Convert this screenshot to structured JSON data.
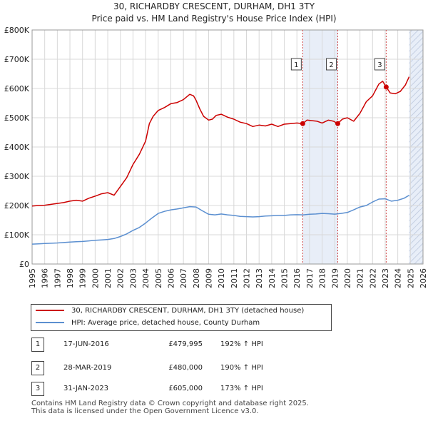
{
  "header": {
    "title": "30, RICHARDBY CRESCENT, DURHAM, DH1 3TY",
    "subtitle": "Price paid vs. HM Land Registry's House Price Index (HPI)"
  },
  "colors": {
    "property": "#cc0000",
    "hpi": "#5b8fd0",
    "marker_line": "#d04a4a",
    "span_fill": "#e8eef8",
    "grid": "#d8d8d8"
  },
  "chart_data": {
    "type": "line",
    "title": "30, RICHARDBY CRESCENT, DURHAM, DH1 3TY",
    "subtitle": "Price paid vs. HM Land Registry's House Price Index (HPI)",
    "xlabel": "",
    "ylabel": "",
    "xlim": [
      1995,
      2026
    ],
    "ylim": [
      0,
      800000
    ],
    "grid": true,
    "yticks": [
      0,
      100000,
      200000,
      300000,
      400000,
      500000,
      600000,
      700000,
      800000
    ],
    "ytick_labels": [
      "£0",
      "£100K",
      "£200K",
      "£300K",
      "£400K",
      "£500K",
      "£600K",
      "£700K",
      "£800K"
    ],
    "xtick_labels": [
      "1995",
      "1996",
      "1997",
      "1998",
      "1999",
      "2000",
      "2001",
      "2002",
      "2003",
      "2004",
      "2005",
      "2006",
      "2007",
      "2008",
      "2009",
      "2010",
      "2011",
      "2012",
      "2013",
      "2014",
      "2015",
      "2016",
      "2017",
      "2018",
      "2019",
      "2020",
      "2021",
      "2022",
      "2023",
      "2024",
      "2025",
      "2026"
    ],
    "shaded_spans": [
      [
        2016.46,
        2019.24
      ],
      [
        2024.9,
        2026.0
      ]
    ],
    "hatched_span": [
      2024.9,
      2026.0
    ],
    "series": [
      {
        "name": "30, RICHARDBY CRESCENT, DURHAM, DH1 3TY (detached house)",
        "color": "#cc0000",
        "x": [
          1995.0,
          1995.5,
          1996.0,
          1996.5,
          1997.0,
          1997.5,
          1998.0,
          1998.5,
          1999.0,
          1999.5,
          2000.0,
          2000.5,
          2001.0,
          2001.5,
          2002.0,
          2002.5,
          2003.0,
          2003.5,
          2004.0,
          2004.3,
          2004.6,
          2005.0,
          2005.5,
          2006.0,
          2006.5,
          2007.0,
          2007.5,
          2007.8,
          2008.0,
          2008.3,
          2008.6,
          2009.0,
          2009.3,
          2009.6,
          2010.0,
          2010.5,
          2011.0,
          2011.5,
          2012.0,
          2012.5,
          2013.0,
          2013.5,
          2014.0,
          2014.5,
          2015.0,
          2015.5,
          2016.0,
          2016.46,
          2016.8,
          2017.2,
          2017.6,
          2018.0,
          2018.5,
          2018.9,
          2019.24,
          2019.6,
          2020.0,
          2020.5,
          2021.0,
          2021.5,
          2022.0,
          2022.5,
          2022.8,
          2023.08,
          2023.4,
          2023.8,
          2024.2,
          2024.6,
          2024.9
        ],
        "values": [
          198000,
          200000,
          201000,
          204000,
          207000,
          210000,
          215000,
          218000,
          215000,
          225000,
          232000,
          240000,
          244000,
          235000,
          265000,
          295000,
          340000,
          375000,
          420000,
          480000,
          505000,
          525000,
          535000,
          548000,
          552000,
          562000,
          580000,
          575000,
          560000,
          530000,
          505000,
          492000,
          495000,
          508000,
          512000,
          502000,
          495000,
          485000,
          480000,
          470000,
          475000,
          472000,
          478000,
          470000,
          478000,
          480000,
          482000,
          479995,
          492000,
          490000,
          488000,
          482000,
          492000,
          488000,
          480000,
          495000,
          500000,
          488000,
          515000,
          555000,
          575000,
          615000,
          625000,
          605000,
          585000,
          582000,
          590000,
          612000,
          640000
        ]
      },
      {
        "name": "HPI: Average price, detached house, County Durham",
        "color": "#5b8fd0",
        "x": [
          1995.0,
          1995.5,
          1996.0,
          1996.5,
          1997.0,
          1997.5,
          1998.0,
          1998.5,
          1999.0,
          1999.5,
          2000.0,
          2000.5,
          2001.0,
          2001.5,
          2002.0,
          2002.5,
          2003.0,
          2003.5,
          2004.0,
          2004.5,
          2005.0,
          2005.5,
          2006.0,
          2006.5,
          2007.0,
          2007.5,
          2008.0,
          2008.5,
          2009.0,
          2009.5,
          2010.0,
          2010.5,
          2011.0,
          2011.5,
          2012.0,
          2012.5,
          2013.0,
          2013.5,
          2014.0,
          2014.5,
          2015.0,
          2015.5,
          2016.0,
          2016.5,
          2017.0,
          2017.5,
          2018.0,
          2018.5,
          2019.0,
          2019.5,
          2020.0,
          2020.5,
          2021.0,
          2021.5,
          2022.0,
          2022.5,
          2023.0,
          2023.5,
          2024.0,
          2024.5,
          2024.9
        ],
        "values": [
          68000,
          69000,
          70000,
          71000,
          72000,
          73500,
          75000,
          76000,
          77000,
          79000,
          81000,
          82500,
          84000,
          87000,
          94000,
          103000,
          115000,
          125000,
          140000,
          157000,
          173000,
          180000,
          185000,
          188000,
          192000,
          196000,
          195000,
          182000,
          170000,
          168000,
          171000,
          168000,
          166000,
          163000,
          162000,
          161000,
          162000,
          164000,
          165000,
          166000,
          166000,
          168000,
          168500,
          168000,
          170000,
          171000,
          173000,
          172000,
          170500,
          173000,
          176000,
          185000,
          195000,
          200000,
          212000,
          222000,
          223000,
          215000,
          218000,
          225000,
          235000
        ]
      }
    ],
    "sale_points": [
      {
        "label": "1",
        "x": 2016.46,
        "value": 479995
      },
      {
        "label": "2",
        "x": 2019.24,
        "value": 480000
      },
      {
        "label": "3",
        "x": 2023.08,
        "value": 605000
      }
    ]
  },
  "legend": {
    "property_label": "30, RICHARDBY CRESCENT, DURHAM, DH1 3TY (detached house)",
    "hpi_label": "HPI: Average price, detached house, County Durham"
  },
  "transactions": [
    {
      "num": "1",
      "date": "17-JUN-2016",
      "price": "£479,995",
      "hpi": "192% ↑ HPI"
    },
    {
      "num": "2",
      "date": "28-MAR-2019",
      "price": "£480,000",
      "hpi": "190% ↑ HPI"
    },
    {
      "num": "3",
      "date": "31-JAN-2023",
      "price": "£605,000",
      "hpi": "173% ↑ HPI"
    }
  ],
  "footer": {
    "line1": "Contains HM Land Registry data © Crown copyright and database right 2025.",
    "line2": "This data is licensed under the Open Government Licence v3.0."
  }
}
